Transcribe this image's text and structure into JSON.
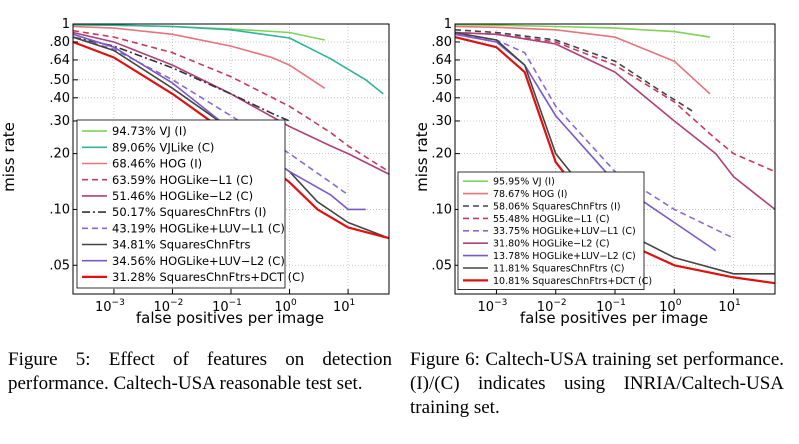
{
  "chart_data": [
    {
      "type": "line",
      "xlabel": "false positives per image",
      "ylabel": "miss rate",
      "x_scale": "log",
      "y_scale": "log",
      "xlim": [
        0.0002,
        50
      ],
      "ylim": [
        0.035,
        1
      ],
      "grid": true,
      "legend": "bottom-left",
      "x_ticks": [
        {
          "v": 0.001,
          "b": "10",
          "e": "−3"
        },
        {
          "v": 0.01,
          "b": "10",
          "e": "−2"
        },
        {
          "v": 0.1,
          "b": "10",
          "e": "−1"
        },
        {
          "v": 1,
          "b": "10",
          "e": "0"
        },
        {
          "v": 10,
          "b": "10",
          "e": "1"
        }
      ],
      "y_ticks": [
        {
          "v": 1,
          "label": "1"
        },
        {
          "v": 0.8,
          "label": ".80"
        },
        {
          "v": 0.64,
          "label": ".64"
        },
        {
          "v": 0.5,
          "label": ".50"
        },
        {
          "v": 0.4,
          "label": ".40"
        },
        {
          "v": 0.3,
          "label": ".30"
        },
        {
          "v": 0.2,
          "label": ".20"
        },
        {
          "v": 0.1,
          "label": ".10"
        },
        {
          "v": 0.05,
          "label": ".05"
        }
      ],
      "series": [
        {
          "name": "94.73% VJ (I)",
          "color": "#7fd35a",
          "dash": "",
          "points": [
            [
              0.0002,
              0.99
            ],
            [
              0.001,
              0.985
            ],
            [
              0.01,
              0.97
            ],
            [
              0.1,
              0.94
            ],
            [
              1,
              0.9
            ],
            [
              4,
              0.82
            ]
          ]
        },
        {
          "name": "89.06% VJLike (C)",
          "color": "#2fb39a",
          "dash": "",
          "points": [
            [
              0.0002,
              0.99
            ],
            [
              0.001,
              0.985
            ],
            [
              0.01,
              0.97
            ],
            [
              0.1,
              0.93
            ],
            [
              1,
              0.84
            ],
            [
              5,
              0.65
            ],
            [
              20,
              0.5
            ],
            [
              40,
              0.42
            ]
          ]
        },
        {
          "name": "68.46% HOG (I)",
          "color": "#e8747c",
          "dash": "",
          "points": [
            [
              0.0002,
              0.97
            ],
            [
              0.001,
              0.95
            ],
            [
              0.01,
              0.88
            ],
            [
              0.1,
              0.76
            ],
            [
              0.5,
              0.66
            ],
            [
              1,
              0.6
            ],
            [
              4,
              0.45
            ]
          ]
        },
        {
          "name": "63.59% HOGLike−L1 (C)",
          "color": "#c83a5c",
          "dash": "6,4",
          "points": [
            [
              0.0002,
              0.92
            ],
            [
              0.001,
              0.85
            ],
            [
              0.01,
              0.7
            ],
            [
              0.1,
              0.52
            ],
            [
              1,
              0.36
            ],
            [
              5,
              0.26
            ],
            [
              10,
              0.22
            ],
            [
              50,
              0.16
            ]
          ]
        },
        {
          "name": "51.46% HOGLike−L2 (C)",
          "color": "#b0407a",
          "dash": "",
          "points": [
            [
              0.0002,
              0.9
            ],
            [
              0.001,
              0.8
            ],
            [
              0.01,
              0.6
            ],
            [
              0.1,
              0.42
            ],
            [
              1,
              0.28
            ],
            [
              5,
              0.22
            ],
            [
              10,
              0.2
            ],
            [
              50,
              0.155
            ]
          ]
        },
        {
          "name": "50.17% SquaresChnFtrs (I)",
          "color": "#333333",
          "dash": "8,3,2,3",
          "points": [
            [
              0.0002,
              0.85
            ],
            [
              0.001,
              0.76
            ],
            [
              0.01,
              0.58
            ],
            [
              0.1,
              0.42
            ],
            [
              0.5,
              0.33
            ],
            [
              1,
              0.3
            ]
          ]
        },
        {
          "name": "43.19% HOGLike+LUV−L1 (C)",
          "color": "#8a6ad0",
          "dash": "6,4",
          "points": [
            [
              0.0002,
              0.85
            ],
            [
              0.001,
              0.73
            ],
            [
              0.01,
              0.5
            ],
            [
              0.1,
              0.32
            ],
            [
              1,
              0.2
            ],
            [
              5,
              0.14
            ],
            [
              10,
              0.12
            ]
          ]
        },
        {
          "name": "34.81% SquaresChnFtrs",
          "color": "#444444",
          "dash": "",
          "points": [
            [
              0.0002,
              0.85
            ],
            [
              0.001,
              0.72
            ],
            [
              0.01,
              0.45
            ],
            [
              0.1,
              0.27
            ],
            [
              1,
              0.16
            ],
            [
              3,
              0.11
            ],
            [
              10,
              0.085
            ],
            [
              50,
              0.07
            ]
          ]
        },
        {
          "name": "34.56% HOGLike+LUV−L2 (C)",
          "color": "#7a58c8",
          "dash": "",
          "points": [
            [
              0.0002,
              0.88
            ],
            [
              0.001,
              0.75
            ],
            [
              0.01,
              0.48
            ],
            [
              0.1,
              0.27
            ],
            [
              1,
              0.16
            ],
            [
              5,
              0.12
            ],
            [
              10,
              0.1
            ],
            [
              20,
              0.1
            ]
          ]
        },
        {
          "name": "31.28% SquaresChnFtrs+DCT (C)",
          "color": "#e01010",
          "dash": "",
          "points": [
            [
              0.0002,
              0.8
            ],
            [
              0.001,
              0.66
            ],
            [
              0.01,
              0.42
            ],
            [
              0.1,
              0.25
            ],
            [
              1,
              0.14
            ],
            [
              3,
              0.1
            ],
            [
              10,
              0.08
            ],
            [
              50,
              0.07
            ]
          ]
        }
      ]
    },
    {
      "type": "line",
      "xlabel": "false positives per image",
      "ylabel": "miss rate",
      "x_scale": "log",
      "y_scale": "log",
      "xlim": [
        0.0002,
        50
      ],
      "ylim": [
        0.035,
        1
      ],
      "grid": true,
      "legend": "bottom-left",
      "x_ticks": [
        {
          "v": 0.001,
          "b": "10",
          "e": "−3"
        },
        {
          "v": 0.01,
          "b": "10",
          "e": "−2"
        },
        {
          "v": 0.1,
          "b": "10",
          "e": "−1"
        },
        {
          "v": 1,
          "b": "10",
          "e": "0"
        },
        {
          "v": 10,
          "b": "10",
          "e": "1"
        }
      ],
      "y_ticks": [
        {
          "v": 1,
          "label": "1"
        },
        {
          "v": 0.8,
          "label": ".80"
        },
        {
          "v": 0.64,
          "label": ".64"
        },
        {
          "v": 0.5,
          "label": ".50"
        },
        {
          "v": 0.4,
          "label": ".40"
        },
        {
          "v": 0.3,
          "label": ".30"
        },
        {
          "v": 0.2,
          "label": ".20"
        },
        {
          "v": 0.1,
          "label": ".10"
        },
        {
          "v": 0.05,
          "label": ".05"
        }
      ],
      "series": [
        {
          "name": "95.95% VJ (I)",
          "color": "#7fd35a",
          "dash": "",
          "points": [
            [
              0.0002,
              0.99
            ],
            [
              0.001,
              0.985
            ],
            [
              0.01,
              0.97
            ],
            [
              0.1,
              0.95
            ],
            [
              1,
              0.91
            ],
            [
              4,
              0.85
            ]
          ]
        },
        {
          "name": "78.67% HOG (I)",
          "color": "#e8747c",
          "dash": "",
          "points": [
            [
              0.0002,
              0.97
            ],
            [
              0.001,
              0.96
            ],
            [
              0.01,
              0.93
            ],
            [
              0.1,
              0.85
            ],
            [
              1,
              0.63
            ],
            [
              4,
              0.42
            ]
          ]
        },
        {
          "name": "58.06% SquaresChnFtrs (I)",
          "color": "#444444",
          "dash": "6,4",
          "points": [
            [
              0.0002,
              0.93
            ],
            [
              0.001,
              0.9
            ],
            [
              0.01,
              0.82
            ],
            [
              0.1,
              0.63
            ],
            [
              0.5,
              0.45
            ],
            [
              2,
              0.34
            ]
          ]
        },
        {
          "name": "55.48% HOGLike−L1 (C)",
          "color": "#c83a5c",
          "dash": "6,4",
          "points": [
            [
              0.0002,
              0.9
            ],
            [
              0.001,
              0.88
            ],
            [
              0.01,
              0.8
            ],
            [
              0.1,
              0.6
            ],
            [
              1,
              0.38
            ],
            [
              5,
              0.24
            ],
            [
              10,
              0.2
            ],
            [
              50,
              0.16
            ]
          ]
        },
        {
          "name": "33.75% HOGLike+LUV−L1 (C)",
          "color": "#8a6ad0",
          "dash": "6,4",
          "points": [
            [
              0.0002,
              0.88
            ],
            [
              0.001,
              0.82
            ],
            [
              0.003,
              0.7
            ],
            [
              0.01,
              0.36
            ],
            [
              0.1,
              0.16
            ],
            [
              1,
              0.1
            ],
            [
              10,
              0.07
            ]
          ]
        },
        {
          "name": "31.80% HOGLike−L2 (C)",
          "color": "#b0407a",
          "dash": "",
          "points": [
            [
              0.0002,
              0.9
            ],
            [
              0.001,
              0.88
            ],
            [
              0.01,
              0.78
            ],
            [
              0.1,
              0.55
            ],
            [
              1,
              0.3
            ],
            [
              5,
              0.2
            ],
            [
              10,
              0.15
            ],
            [
              50,
              0.1
            ]
          ]
        },
        {
          "name": "13.78% HOGLike+LUV−L2 (C)",
          "color": "#7a58c8",
          "dash": "",
          "points": [
            [
              0.0002,
              0.88
            ],
            [
              0.001,
              0.8
            ],
            [
              0.003,
              0.6
            ],
            [
              0.01,
              0.32
            ],
            [
              0.1,
              0.14
            ],
            [
              1,
              0.085
            ],
            [
              5,
              0.06
            ]
          ]
        },
        {
          "name": "11.81% SquaresChnFtrs (C)",
          "color": "#444444",
          "dash": "",
          "points": [
            [
              0.0002,
              0.9
            ],
            [
              0.001,
              0.82
            ],
            [
              0.003,
              0.6
            ],
            [
              0.01,
              0.2
            ],
            [
              0.1,
              0.08
            ],
            [
              1,
              0.055
            ],
            [
              10,
              0.045
            ],
            [
              50,
              0.045
            ]
          ]
        },
        {
          "name": "10.81% SquaresChnFtrs+DCT (C)",
          "color": "#e01010",
          "dash": "",
          "points": [
            [
              0.0002,
              0.85
            ],
            [
              0.001,
              0.75
            ],
            [
              0.003,
              0.55
            ],
            [
              0.01,
              0.18
            ],
            [
              0.1,
              0.07
            ],
            [
              1,
              0.05
            ],
            [
              10,
              0.043
            ],
            [
              50,
              0.04
            ]
          ]
        }
      ]
    }
  ],
  "captions": [
    {
      "label": "Figure 5:",
      "text": "Effect of features on detection performance. Caltech-USA reasonable test set."
    },
    {
      "label": "Figure 6:",
      "text": "Caltech-USA training set performance. (I)/(C) indicates using INRIA/Caltech-USA training set."
    }
  ]
}
